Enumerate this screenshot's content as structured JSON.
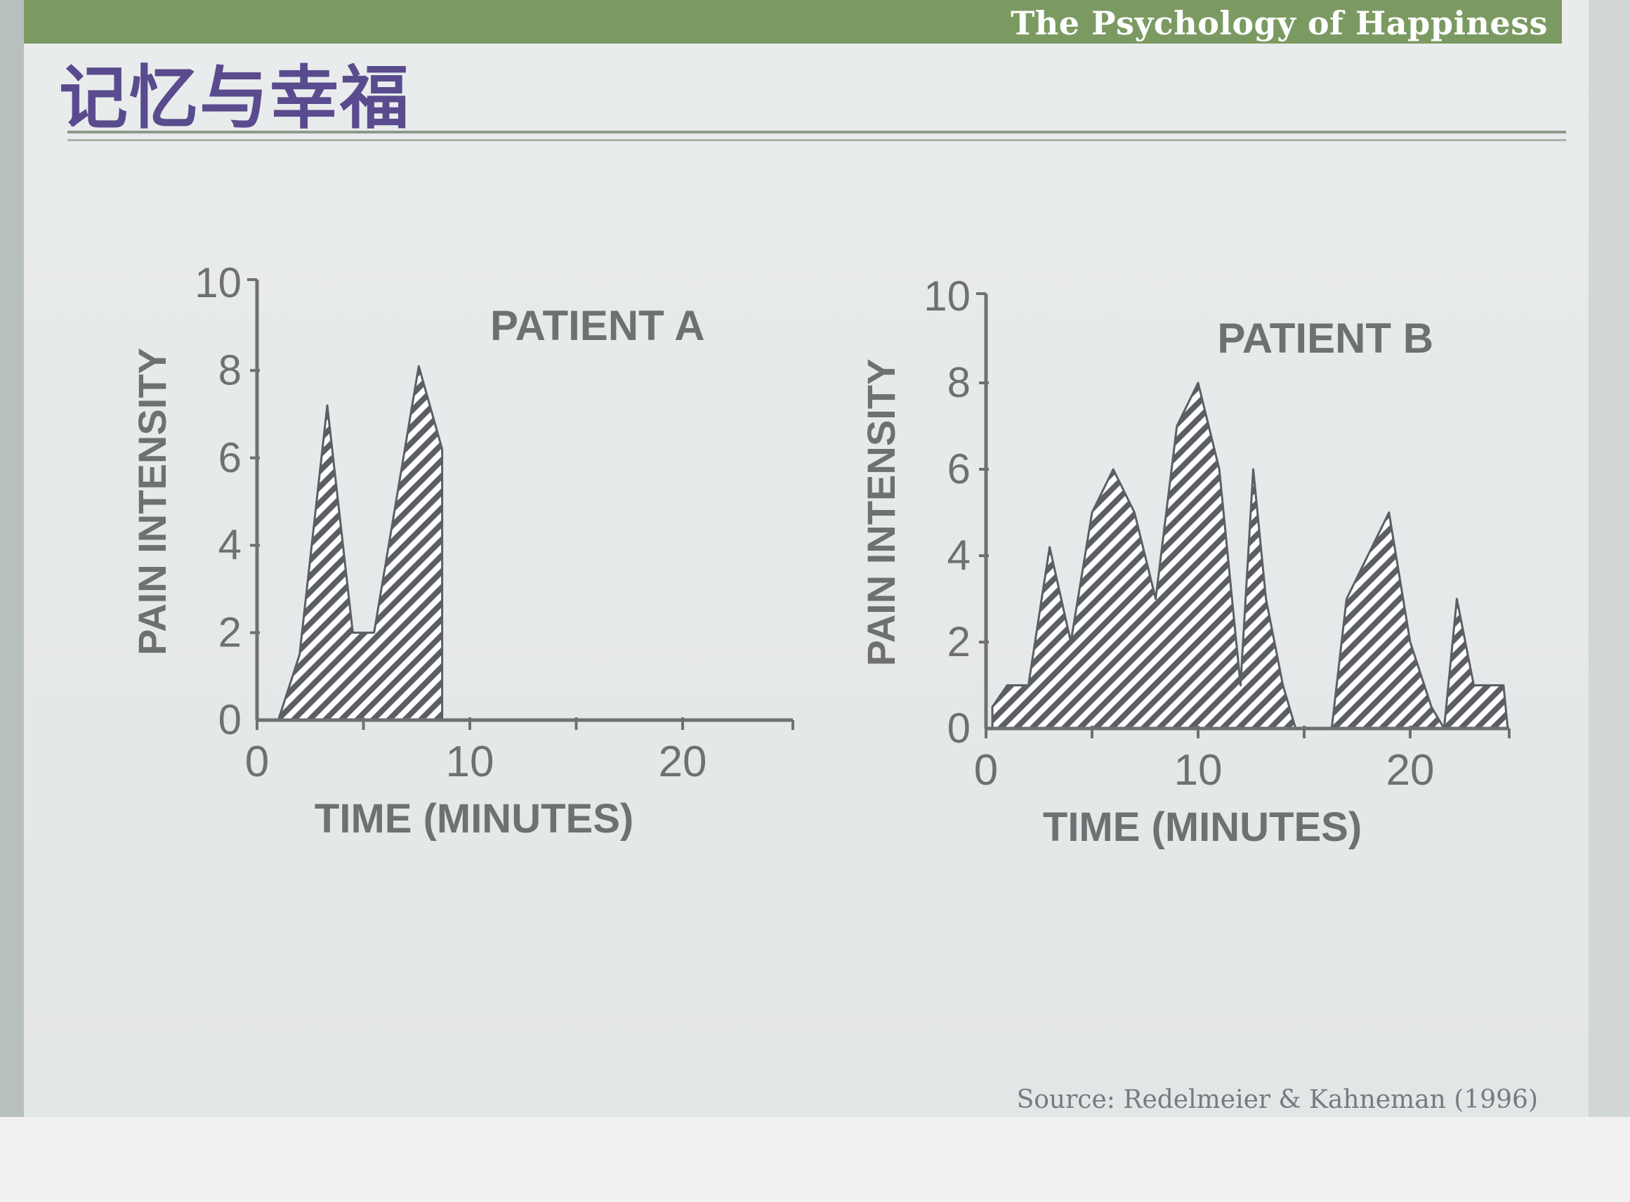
{
  "header": {
    "course": "The Psychology of Happiness"
  },
  "slide": {
    "title": "记忆与幸福"
  },
  "footer": {
    "source": "Source: Redelmeier & Kahneman (1996)"
  },
  "colors": {
    "band": "#7b9a62",
    "title": "#5a4b8e",
    "ink": "#6e7072"
  },
  "chart_data": [
    {
      "type": "area",
      "title": "PATIENT A",
      "xlabel": "TIME (MINUTES)",
      "ylabel": "PAIN INTENSITY",
      "xlim": [
        0,
        25
      ],
      "ylim": [
        0,
        10
      ],
      "xticks": [
        0,
        10,
        20
      ],
      "yticks": [
        0,
        2,
        4,
        6,
        8,
        10
      ],
      "fill": "diagonal hatch",
      "series": [
        {
          "x": [
            1,
            2,
            3.3,
            4.5,
            5.5,
            7.6,
            8.7,
            8.7
          ],
          "y": [
            0,
            1.5,
            7.2,
            2,
            2,
            8.1,
            6.2,
            0
          ]
        }
      ]
    },
    {
      "type": "area",
      "title": "PATIENT B",
      "xlabel": "TIME (MINUTES)",
      "ylabel": "PAIN INTENSITY",
      "xlim": [
        0,
        25
      ],
      "ylim": [
        0,
        10
      ],
      "xticks": [
        0,
        10,
        20
      ],
      "yticks": [
        0,
        2,
        4,
        6,
        8,
        10
      ],
      "fill": "diagonal hatch",
      "series": [
        {
          "x": [
            0.3,
            1,
            2,
            3,
            4,
            5,
            6,
            7,
            8,
            9,
            10,
            11,
            12,
            12.6,
            13.2,
            14,
            14.6,
            16.3,
            17,
            19,
            20,
            21,
            21.6,
            22.2,
            23,
            24.4,
            24.6
          ],
          "y": [
            0.5,
            1,
            1,
            4.2,
            2,
            5,
            6,
            5,
            3,
            7,
            8,
            6,
            1,
            6,
            3,
            1,
            0,
            0,
            3,
            5,
            2,
            0.5,
            0,
            3,
            1,
            1,
            0
          ]
        }
      ]
    }
  ]
}
